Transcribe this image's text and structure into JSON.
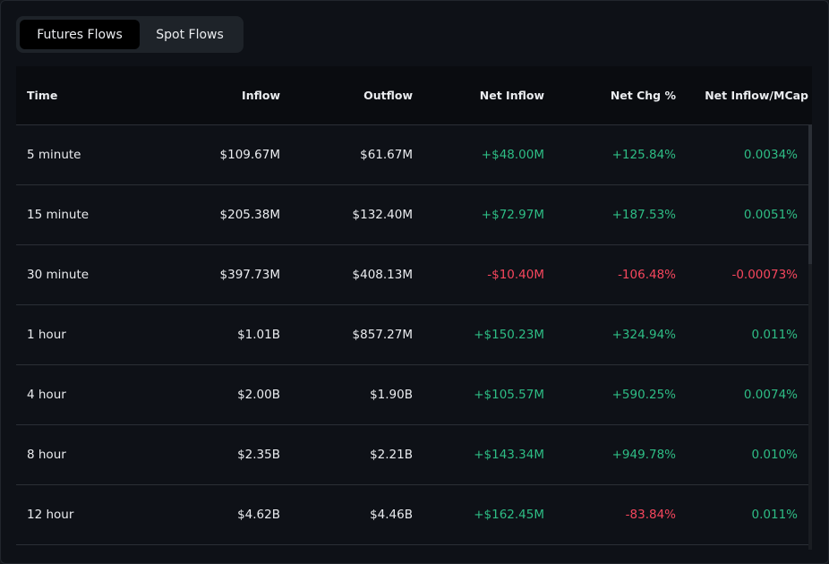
{
  "tabs": [
    {
      "label": "Futures Flows",
      "active": true
    },
    {
      "label": "Spot Flows",
      "active": false
    }
  ],
  "colors": {
    "positive": "#2ebd85",
    "negative": "#f6465d"
  },
  "table": {
    "headers": [
      "Time",
      "Inflow",
      "Outflow",
      "Net Inflow",
      "Net Chg %",
      "Net Inflow/MCap"
    ],
    "rows": [
      [
        "5 minute",
        "$109.67M",
        "$61.67M",
        "+$48.00M",
        "+125.84%",
        "0.0034%"
      ],
      [
        "15 minute",
        "$205.38M",
        "$132.40M",
        "+$72.97M",
        "+187.53%",
        "0.0051%"
      ],
      [
        "30 minute",
        "$397.73M",
        "$408.13M",
        "-$10.40M",
        "-106.48%",
        "-0.00073%"
      ],
      [
        "1 hour",
        "$1.01B",
        "$857.27M",
        "+$150.23M",
        "+324.94%",
        "0.011%"
      ],
      [
        "4 hour",
        "$2.00B",
        "$1.90B",
        "+$105.57M",
        "+590.25%",
        "0.0074%"
      ],
      [
        "8 hour",
        "$2.35B",
        "$2.21B",
        "+$143.34M",
        "+949.78%",
        "0.010%"
      ],
      [
        "12 hour",
        "$4.62B",
        "$4.46B",
        "+$162.45M",
        "-83.84%",
        "0.011%"
      ]
    ]
  }
}
